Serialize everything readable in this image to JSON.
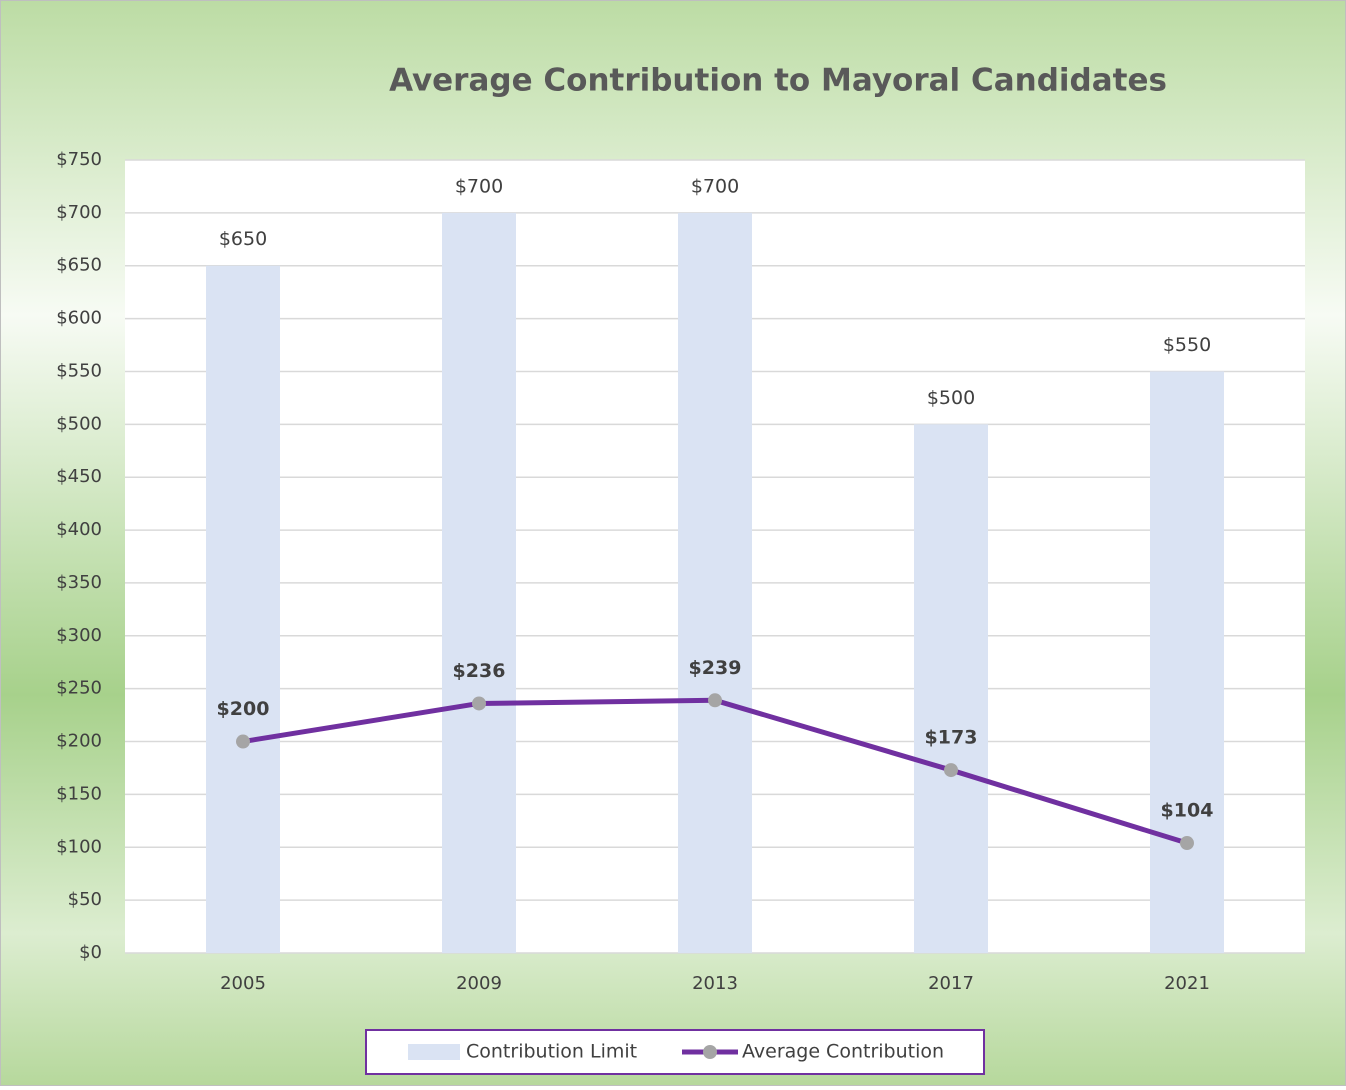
{
  "chart_data": {
    "type": "bar",
    "title": "Average Contribution to Mayoral Candidates",
    "categories": [
      "2005",
      "2009",
      "2013",
      "2017",
      "2021"
    ],
    "series": [
      {
        "name": "Contribution Limit",
        "type": "bar",
        "color": "#dae3f3",
        "values": [
          650,
          700,
          700,
          500,
          550
        ],
        "value_labels": [
          "$650",
          "$700",
          "$700",
          "$500",
          "$550"
        ]
      },
      {
        "name": "Average Contribution",
        "type": "line",
        "color": "#7030a0",
        "marker_color": "#a5a5a5",
        "values": [
          200,
          236,
          239,
          173,
          104
        ],
        "value_labels": [
          "$200",
          "$236",
          "$239",
          "$173",
          "$104"
        ]
      }
    ],
    "ylim": [
      0,
      750
    ],
    "yticks": [
      {
        "value": 0,
        "label": "$0"
      },
      {
        "value": 50,
        "label": "$50"
      },
      {
        "value": 100,
        "label": "$100"
      },
      {
        "value": 150,
        "label": "$150"
      },
      {
        "value": 200,
        "label": "$200"
      },
      {
        "value": 250,
        "label": "$250"
      },
      {
        "value": 300,
        "label": "$300"
      },
      {
        "value": 350,
        "label": "$350"
      },
      {
        "value": 400,
        "label": "$400"
      },
      {
        "value": 450,
        "label": "$450"
      },
      {
        "value": 500,
        "label": "$500"
      },
      {
        "value": 550,
        "label": "$550"
      },
      {
        "value": 600,
        "label": "$600"
      },
      {
        "value": 650,
        "label": "$650"
      },
      {
        "value": 700,
        "label": "$700"
      },
      {
        "value": 750,
        "label": "$750"
      }
    ],
    "grid": true,
    "legend": "bottom"
  }
}
